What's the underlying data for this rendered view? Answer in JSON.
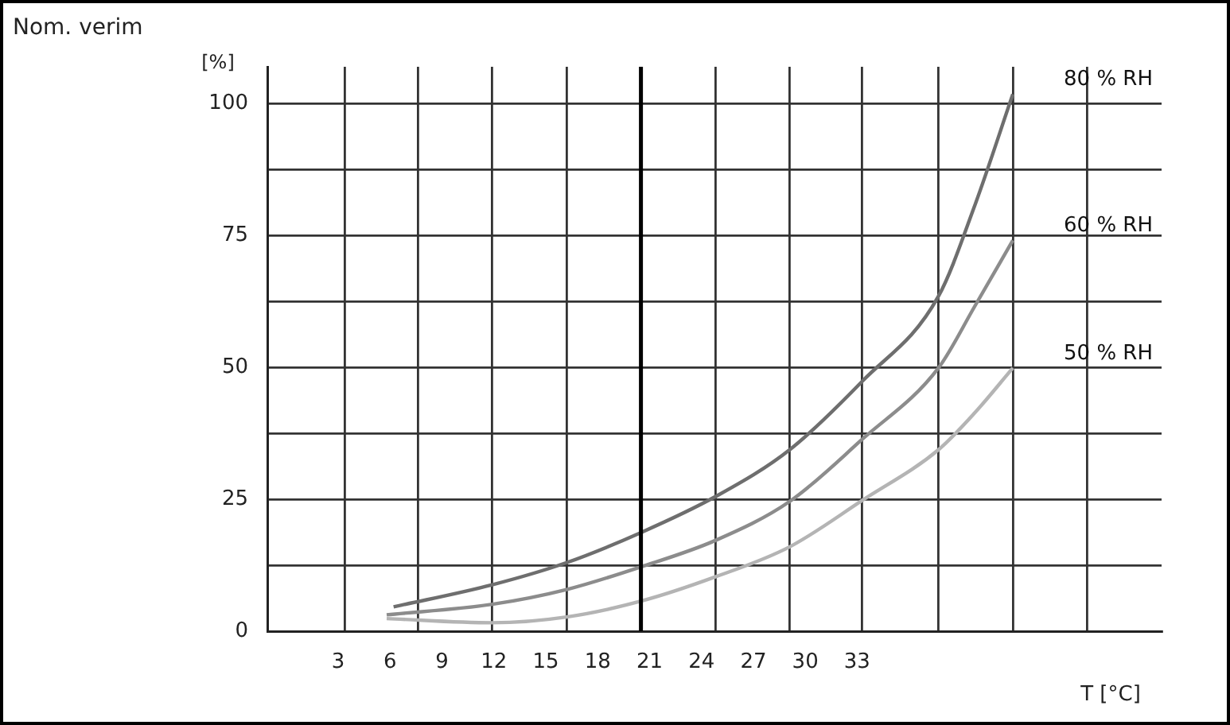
{
  "chart_data": {
    "type": "line",
    "title": "Nom. verim",
    "ylabel": "[%]",
    "xlabel": "T [°C]",
    "xlim": [
      -1.1,
      50.6
    ],
    "ylim": [
      0,
      107
    ],
    "xticks": [
      3,
      6,
      9,
      12,
      15,
      18,
      21,
      24,
      27,
      30,
      33,
      {
        "value": 3.4,
        "label": null
      },
      {
        "value": 7.6,
        "label": null
      },
      {
        "value": 11.9,
        "label": null
      },
      {
        "value": 16.2,
        "label": null
      },
      {
        "value": 20.5,
        "label": null
      },
      {
        "value": 24.8,
        "label": null
      },
      {
        "value": 29.1,
        "label": null
      },
      {
        "value": 33.3,
        "label": null
      },
      {
        "value": 37.7,
        "label": null
      },
      {
        "value": 42,
        "label": null
      },
      {
        "value": 46.3,
        "label": null
      }
    ],
    "yticks": [
      0,
      {
        "value": 12.5,
        "label": null
      },
      25,
      {
        "value": 37.5,
        "label": null
      },
      50,
      {
        "value": 62.5,
        "label": null
      },
      75,
      {
        "value": 87.5,
        "label": null
      },
      100
    ],
    "grid": true,
    "legend": false,
    "marker": "none",
    "line_style": "solid",
    "ref_lines": [
      {
        "axis": "x",
        "value": 20.5,
        "color": "#000000"
      }
    ],
    "series": [
      {
        "name": "80 % RH",
        "color": "#6e6e6e",
        "x": [
          6.2,
          11.9,
          16.2,
          20.5,
          24.8,
          29.1,
          33.3,
          37.7,
          39.8,
          42
        ],
        "values": [
          4.6,
          8.8,
          13,
          18.7,
          25.5,
          34.4,
          47.4,
          63.5,
          80.7,
          101.8
        ]
      },
      {
        "name": "60 % RH",
        "color": "#8c8c8c",
        "x": [
          5.8,
          11.9,
          16.2,
          20.5,
          24.8,
          29.1,
          33.3,
          37.7,
          39.8,
          42
        ],
        "values": [
          3.1,
          5.1,
          7.9,
          12.2,
          17.2,
          24.6,
          36.4,
          49.9,
          61.6,
          74.1
        ]
      },
      {
        "name": "50 % RH",
        "color": "#b4b4b4",
        "x": [
          5.8,
          11.9,
          16.2,
          20.5,
          24.8,
          29.1,
          33.3,
          37.7,
          39.8,
          42
        ],
        "values": [
          2.4,
          1.6,
          2.7,
          5.7,
          10.3,
          16,
          24.8,
          34.4,
          41.4,
          49.9
        ]
      }
    ]
  }
}
